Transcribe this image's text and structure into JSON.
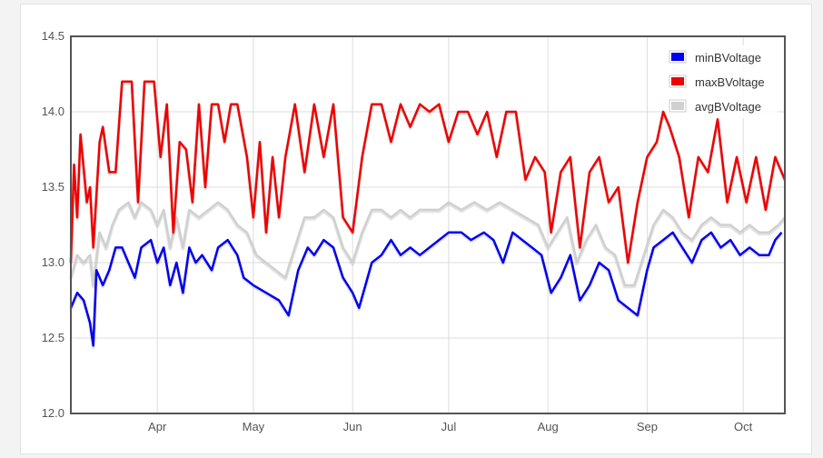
{
  "chart_data": {
    "type": "line",
    "title": "",
    "xlabel": "",
    "ylabel": "",
    "ylim": [
      12.0,
      14.5
    ],
    "yticks": [
      "14.5",
      "14.0",
      "13.5",
      "13.0",
      "12.5",
      "12.0"
    ],
    "xlim": [
      "2014-03-05",
      "2014-10-14"
    ],
    "xticks": [
      {
        "label": "Apr",
        "date": "2014-04-01"
      },
      {
        "label": "May",
        "date": "2014-05-01"
      },
      {
        "label": "Jun",
        "date": "2014-06-01"
      },
      {
        "label": "Jul",
        "date": "2014-07-01"
      },
      {
        "label": "Aug",
        "date": "2014-08-01"
      },
      {
        "label": "Sep",
        "date": "2014-09-01"
      },
      {
        "label": "Oct",
        "date": "2014-10-01"
      }
    ],
    "grid": true,
    "legend_position": "top-right",
    "series": [
      {
        "name": "minBVoltage",
        "color": "#0000ee",
        "points": [
          [
            "2014-03-05",
            12.7
          ],
          [
            "2014-03-07",
            12.8
          ],
          [
            "2014-03-09",
            12.75
          ],
          [
            "2014-03-11",
            12.6
          ],
          [
            "2014-03-12",
            12.45
          ],
          [
            "2014-03-13",
            12.95
          ],
          [
            "2014-03-15",
            12.85
          ],
          [
            "2014-03-17",
            12.95
          ],
          [
            "2014-03-19",
            13.1
          ],
          [
            "2014-03-21",
            13.1
          ],
          [
            "2014-03-23",
            13.0
          ],
          [
            "2014-03-25",
            12.9
          ],
          [
            "2014-03-27",
            13.1
          ],
          [
            "2014-03-30",
            13.15
          ],
          [
            "2014-04-01",
            13.0
          ],
          [
            "2014-04-03",
            13.1
          ],
          [
            "2014-04-05",
            12.85
          ],
          [
            "2014-04-07",
            13.0
          ],
          [
            "2014-04-09",
            12.8
          ],
          [
            "2014-04-11",
            13.1
          ],
          [
            "2014-04-13",
            13.0
          ],
          [
            "2014-04-15",
            13.05
          ],
          [
            "2014-04-18",
            12.95
          ],
          [
            "2014-04-20",
            13.1
          ],
          [
            "2014-04-23",
            13.15
          ],
          [
            "2014-04-26",
            13.05
          ],
          [
            "2014-04-28",
            12.9
          ],
          [
            "2014-05-01",
            12.85
          ],
          [
            "2014-05-05",
            12.8
          ],
          [
            "2014-05-09",
            12.75
          ],
          [
            "2014-05-12",
            12.65
          ],
          [
            "2014-05-15",
            12.95
          ],
          [
            "2014-05-18",
            13.1
          ],
          [
            "2014-05-20",
            13.05
          ],
          [
            "2014-05-23",
            13.15
          ],
          [
            "2014-05-26",
            13.1
          ],
          [
            "2014-05-29",
            12.9
          ],
          [
            "2014-06-01",
            12.8
          ],
          [
            "2014-06-03",
            12.7
          ],
          [
            "2014-06-05",
            12.85
          ],
          [
            "2014-06-07",
            13.0
          ],
          [
            "2014-06-10",
            13.05
          ],
          [
            "2014-06-13",
            13.15
          ],
          [
            "2014-06-16",
            13.05
          ],
          [
            "2014-06-19",
            13.1
          ],
          [
            "2014-06-22",
            13.05
          ],
          [
            "2014-06-25",
            13.1
          ],
          [
            "2014-06-28",
            13.15
          ],
          [
            "2014-07-01",
            13.2
          ],
          [
            "2014-07-05",
            13.2
          ],
          [
            "2014-07-08",
            13.15
          ],
          [
            "2014-07-12",
            13.2
          ],
          [
            "2014-07-15",
            13.15
          ],
          [
            "2014-07-18",
            13.0
          ],
          [
            "2014-07-21",
            13.2
          ],
          [
            "2014-07-24",
            13.15
          ],
          [
            "2014-07-27",
            13.1
          ],
          [
            "2014-07-30",
            13.05
          ],
          [
            "2014-08-02",
            12.8
          ],
          [
            "2014-08-05",
            12.9
          ],
          [
            "2014-08-08",
            13.05
          ],
          [
            "2014-08-11",
            12.75
          ],
          [
            "2014-08-14",
            12.85
          ],
          [
            "2014-08-17",
            13.0
          ],
          [
            "2014-08-20",
            12.95
          ],
          [
            "2014-08-23",
            12.75
          ],
          [
            "2014-08-26",
            12.7
          ],
          [
            "2014-08-29",
            12.65
          ],
          [
            "2014-09-01",
            12.95
          ],
          [
            "2014-09-03",
            13.1
          ],
          [
            "2014-09-06",
            13.15
          ],
          [
            "2014-09-09",
            13.2
          ],
          [
            "2014-09-12",
            13.1
          ],
          [
            "2014-09-15",
            13.0
          ],
          [
            "2014-09-18",
            13.15
          ],
          [
            "2014-09-21",
            13.2
          ],
          [
            "2014-09-24",
            13.1
          ],
          [
            "2014-09-27",
            13.15
          ],
          [
            "2014-09-30",
            13.05
          ],
          [
            "2014-10-03",
            13.1
          ],
          [
            "2014-10-06",
            13.05
          ],
          [
            "2014-10-09",
            13.05
          ],
          [
            "2014-10-11",
            13.15
          ],
          [
            "2014-10-13",
            13.2
          ]
        ]
      },
      {
        "name": "maxBVoltage",
        "color": "#ee0000",
        "points": [
          [
            "2014-03-05",
            13.0
          ],
          [
            "2014-03-06",
            13.65
          ],
          [
            "2014-03-07",
            13.3
          ],
          [
            "2014-03-08",
            13.85
          ],
          [
            "2014-03-10",
            13.4
          ],
          [
            "2014-03-11",
            13.5
          ],
          [
            "2014-03-12",
            13.1
          ],
          [
            "2014-03-14",
            13.8
          ],
          [
            "2014-03-15",
            13.9
          ],
          [
            "2014-03-17",
            13.6
          ],
          [
            "2014-03-19",
            13.6
          ],
          [
            "2014-03-21",
            14.2
          ],
          [
            "2014-03-24",
            14.2
          ],
          [
            "2014-03-26",
            13.4
          ],
          [
            "2014-03-28",
            14.2
          ],
          [
            "2014-03-31",
            14.2
          ],
          [
            "2014-04-02",
            13.7
          ],
          [
            "2014-04-04",
            14.05
          ],
          [
            "2014-04-06",
            13.2
          ],
          [
            "2014-04-08",
            13.8
          ],
          [
            "2014-04-10",
            13.75
          ],
          [
            "2014-04-12",
            13.4
          ],
          [
            "2014-04-14",
            14.05
          ],
          [
            "2014-04-16",
            13.5
          ],
          [
            "2014-04-18",
            14.05
          ],
          [
            "2014-04-20",
            14.05
          ],
          [
            "2014-04-22",
            13.8
          ],
          [
            "2014-04-24",
            14.05
          ],
          [
            "2014-04-26",
            14.05
          ],
          [
            "2014-04-29",
            13.7
          ],
          [
            "2014-05-01",
            13.3
          ],
          [
            "2014-05-03",
            13.8
          ],
          [
            "2014-05-05",
            13.2
          ],
          [
            "2014-05-07",
            13.7
          ],
          [
            "2014-05-09",
            13.3
          ],
          [
            "2014-05-11",
            13.7
          ],
          [
            "2014-05-14",
            14.05
          ],
          [
            "2014-05-17",
            13.6
          ],
          [
            "2014-05-20",
            14.05
          ],
          [
            "2014-05-23",
            13.7
          ],
          [
            "2014-05-26",
            14.05
          ],
          [
            "2014-05-29",
            13.3
          ],
          [
            "2014-06-01",
            13.2
          ],
          [
            "2014-06-04",
            13.7
          ],
          [
            "2014-06-07",
            14.05
          ],
          [
            "2014-06-10",
            14.05
          ],
          [
            "2014-06-13",
            13.8
          ],
          [
            "2014-06-16",
            14.05
          ],
          [
            "2014-06-19",
            13.9
          ],
          [
            "2014-06-22",
            14.05
          ],
          [
            "2014-06-25",
            14.0
          ],
          [
            "2014-06-28",
            14.05
          ],
          [
            "2014-07-01",
            13.8
          ],
          [
            "2014-07-04",
            14.0
          ],
          [
            "2014-07-07",
            14.0
          ],
          [
            "2014-07-10",
            13.85
          ],
          [
            "2014-07-13",
            14.0
          ],
          [
            "2014-07-16",
            13.7
          ],
          [
            "2014-07-19",
            14.0
          ],
          [
            "2014-07-22",
            14.0
          ],
          [
            "2014-07-25",
            13.55
          ],
          [
            "2014-07-28",
            13.7
          ],
          [
            "2014-07-31",
            13.6
          ],
          [
            "2014-08-02",
            13.2
          ],
          [
            "2014-08-05",
            13.6
          ],
          [
            "2014-08-08",
            13.7
          ],
          [
            "2014-08-11",
            13.1
          ],
          [
            "2014-08-14",
            13.6
          ],
          [
            "2014-08-17",
            13.7
          ],
          [
            "2014-08-20",
            13.4
          ],
          [
            "2014-08-23",
            13.5
          ],
          [
            "2014-08-26",
            13.0
          ],
          [
            "2014-08-29",
            13.4
          ],
          [
            "2014-09-01",
            13.7
          ],
          [
            "2014-09-04",
            13.8
          ],
          [
            "2014-09-06",
            14.0
          ],
          [
            "2014-09-08",
            13.9
          ],
          [
            "2014-09-11",
            13.7
          ],
          [
            "2014-09-14",
            13.3
          ],
          [
            "2014-09-17",
            13.7
          ],
          [
            "2014-09-20",
            13.6
          ],
          [
            "2014-09-23",
            13.95
          ],
          [
            "2014-09-26",
            13.4
          ],
          [
            "2014-09-29",
            13.7
          ],
          [
            "2014-10-02",
            13.4
          ],
          [
            "2014-10-05",
            13.7
          ],
          [
            "2014-10-08",
            13.35
          ],
          [
            "2014-10-11",
            13.7
          ],
          [
            "2014-10-14",
            13.55
          ]
        ]
      },
      {
        "name": "avgBVoltage",
        "color": "#d0d0d0",
        "points": [
          [
            "2014-03-05",
            12.9
          ],
          [
            "2014-03-07",
            13.05
          ],
          [
            "2014-03-09",
            13.0
          ],
          [
            "2014-03-11",
            13.05
          ],
          [
            "2014-03-12",
            12.85
          ],
          [
            "2014-03-14",
            13.2
          ],
          [
            "2014-03-16",
            13.1
          ],
          [
            "2014-03-18",
            13.25
          ],
          [
            "2014-03-20",
            13.35
          ],
          [
            "2014-03-23",
            13.4
          ],
          [
            "2014-03-25",
            13.3
          ],
          [
            "2014-03-27",
            13.4
          ],
          [
            "2014-03-30",
            13.35
          ],
          [
            "2014-04-01",
            13.25
          ],
          [
            "2014-04-03",
            13.35
          ],
          [
            "2014-04-05",
            13.1
          ],
          [
            "2014-04-07",
            13.3
          ],
          [
            "2014-04-09",
            13.1
          ],
          [
            "2014-04-11",
            13.35
          ],
          [
            "2014-04-14",
            13.3
          ],
          [
            "2014-04-17",
            13.35
          ],
          [
            "2014-04-20",
            13.4
          ],
          [
            "2014-04-23",
            13.35
          ],
          [
            "2014-04-26",
            13.25
          ],
          [
            "2014-04-29",
            13.2
          ],
          [
            "2014-05-02",
            13.05
          ],
          [
            "2014-05-05",
            13.0
          ],
          [
            "2014-05-08",
            12.95
          ],
          [
            "2014-05-11",
            12.9
          ],
          [
            "2014-05-14",
            13.1
          ],
          [
            "2014-05-17",
            13.3
          ],
          [
            "2014-05-20",
            13.3
          ],
          [
            "2014-05-23",
            13.35
          ],
          [
            "2014-05-26",
            13.3
          ],
          [
            "2014-05-29",
            13.1
          ],
          [
            "2014-06-01",
            13.0
          ],
          [
            "2014-06-04",
            13.2
          ],
          [
            "2014-06-07",
            13.35
          ],
          [
            "2014-06-10",
            13.35
          ],
          [
            "2014-06-13",
            13.3
          ],
          [
            "2014-06-16",
            13.35
          ],
          [
            "2014-06-19",
            13.3
          ],
          [
            "2014-06-22",
            13.35
          ],
          [
            "2014-06-25",
            13.35
          ],
          [
            "2014-06-28",
            13.35
          ],
          [
            "2014-07-01",
            13.4
          ],
          [
            "2014-07-05",
            13.35
          ],
          [
            "2014-07-09",
            13.4
          ],
          [
            "2014-07-13",
            13.35
          ],
          [
            "2014-07-17",
            13.4
          ],
          [
            "2014-07-21",
            13.35
          ],
          [
            "2014-07-25",
            13.3
          ],
          [
            "2014-07-29",
            13.25
          ],
          [
            "2014-08-01",
            13.1
          ],
          [
            "2014-08-04",
            13.2
          ],
          [
            "2014-08-07",
            13.3
          ],
          [
            "2014-08-10",
            13.0
          ],
          [
            "2014-08-13",
            13.15
          ],
          [
            "2014-08-16",
            13.25
          ],
          [
            "2014-08-19",
            13.1
          ],
          [
            "2014-08-22",
            13.05
          ],
          [
            "2014-08-25",
            12.85
          ],
          [
            "2014-08-28",
            12.85
          ],
          [
            "2014-08-31",
            13.05
          ],
          [
            "2014-09-03",
            13.25
          ],
          [
            "2014-09-06",
            13.35
          ],
          [
            "2014-09-09",
            13.3
          ],
          [
            "2014-09-12",
            13.2
          ],
          [
            "2014-09-15",
            13.15
          ],
          [
            "2014-09-18",
            13.25
          ],
          [
            "2014-09-21",
            13.3
          ],
          [
            "2014-09-24",
            13.25
          ],
          [
            "2014-09-27",
            13.25
          ],
          [
            "2014-09-30",
            13.2
          ],
          [
            "2014-10-03",
            13.25
          ],
          [
            "2014-10-06",
            13.2
          ],
          [
            "2014-10-09",
            13.2
          ],
          [
            "2014-10-12",
            13.25
          ],
          [
            "2014-10-14",
            13.3
          ]
        ]
      }
    ]
  }
}
